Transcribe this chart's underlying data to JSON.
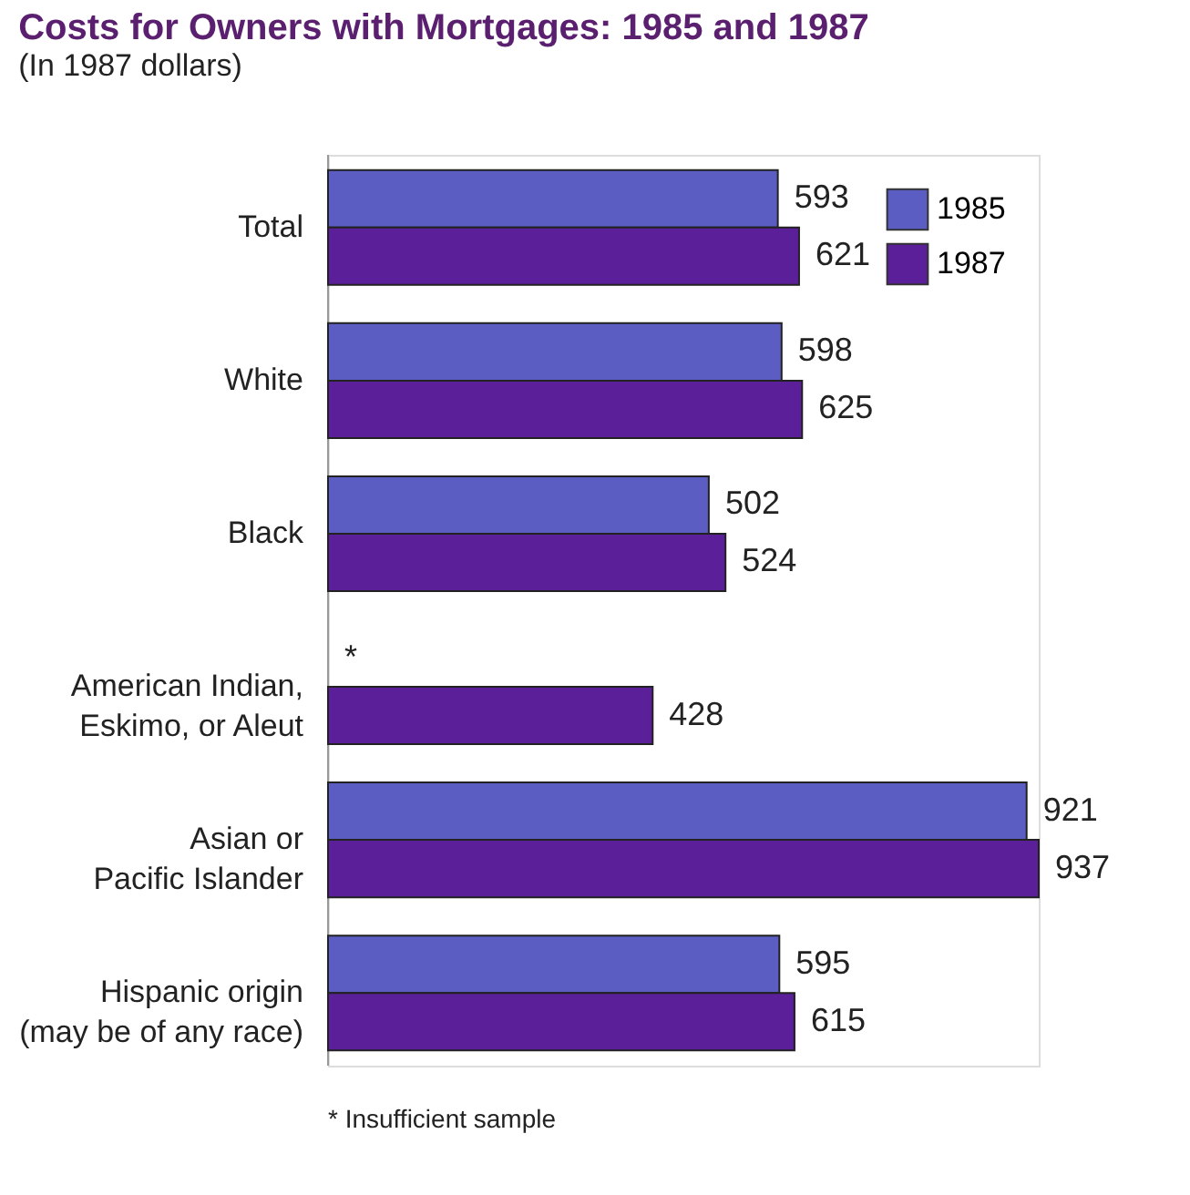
{
  "chart_data": {
    "type": "bar",
    "orientation": "horizontal",
    "title": "Costs for Owners with Mortgages:  1985 and 1987",
    "subtitle": "(In 1987 dollars)",
    "categories": [
      "Total",
      "White",
      "Black",
      "American Indian,\nEskimo, or Aleut",
      "Asian or\nPacific Islander",
      "Hispanic origin\n(may be of any race)"
    ],
    "series": [
      {
        "name": "1985",
        "color": "#5b5dc2",
        "values": [
          593,
          598,
          502,
          null,
          921,
          595
        ],
        "value_labels": [
          "593",
          "598",
          "502",
          "*",
          "921",
          "595"
        ]
      },
      {
        "name": "1987",
        "color": "#5a1f99",
        "values": [
          621,
          625,
          524,
          428,
          937,
          615
        ]
      }
    ],
    "data_labels": true,
    "legend": "top right",
    "grid": false,
    "annotations": [
      "* Insufficient sample"
    ]
  }
}
